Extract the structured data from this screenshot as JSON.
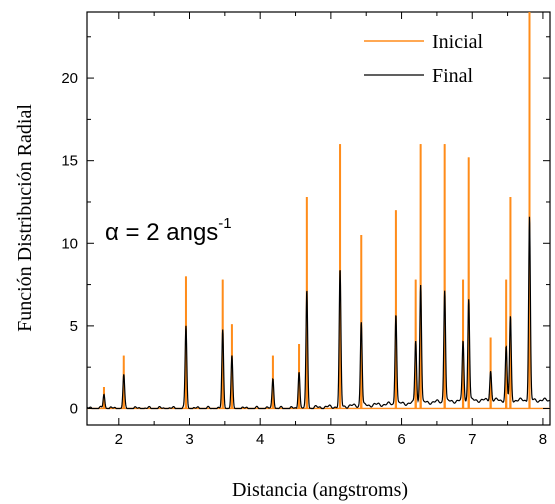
{
  "chart_data": {
    "type": "line",
    "title": "",
    "xlabel": "Distancia (angstroms)",
    "ylabel": "Función Distribución Radial",
    "xlim": [
      1.55,
      8.1
    ],
    "ylim": [
      -1,
      24
    ],
    "x_ticks": [
      2,
      3,
      4,
      5,
      6,
      7,
      8
    ],
    "x_tick_labels": [
      "2",
      "3",
      "4",
      "5",
      "6",
      "7",
      "8"
    ],
    "y_ticks": [
      0,
      5,
      10,
      15,
      20
    ],
    "y_tick_labels": [
      "0",
      "5",
      "10",
      "15",
      "20"
    ],
    "grid": false,
    "legend_position": "top-right",
    "annotation": {
      "prefix": "α = 2 angs",
      "superscript": "-1"
    },
    "series": [
      {
        "name": "Inicial",
        "color": "#ff8c1a",
        "style": "spikes",
        "x": [
          1.79,
          2.07,
          2.95,
          3.47,
          3.6,
          4.18,
          4.55,
          4.66,
          5.13,
          5.43,
          5.92,
          6.2,
          6.27,
          6.61,
          6.87,
          6.95,
          7.26,
          7.48,
          7.54,
          7.81
        ],
        "y": [
          1.3,
          3.2,
          8.0,
          7.8,
          5.1,
          3.2,
          3.9,
          12.8,
          16.0,
          10.5,
          12.0,
          7.8,
          16.0,
          16.0,
          7.8,
          15.2,
          4.3,
          7.8,
          12.8,
          24.5
        ]
      },
      {
        "name": "Final",
        "color": "#000000",
        "style": "peaks",
        "x": [
          1.79,
          2.07,
          2.95,
          3.47,
          3.6,
          4.18,
          4.55,
          4.66,
          5.13,
          5.43,
          5.92,
          6.2,
          6.27,
          6.61,
          6.87,
          6.95,
          7.26,
          7.48,
          7.54,
          7.81
        ],
        "y": [
          0.85,
          2.0,
          5.0,
          4.7,
          3.1,
          1.8,
          2.2,
          7.1,
          8.2,
          5.1,
          5.5,
          3.8,
          7.2,
          6.8,
          3.6,
          6.2,
          1.8,
          3.2,
          5.0,
          11.1
        ]
      }
    ]
  }
}
